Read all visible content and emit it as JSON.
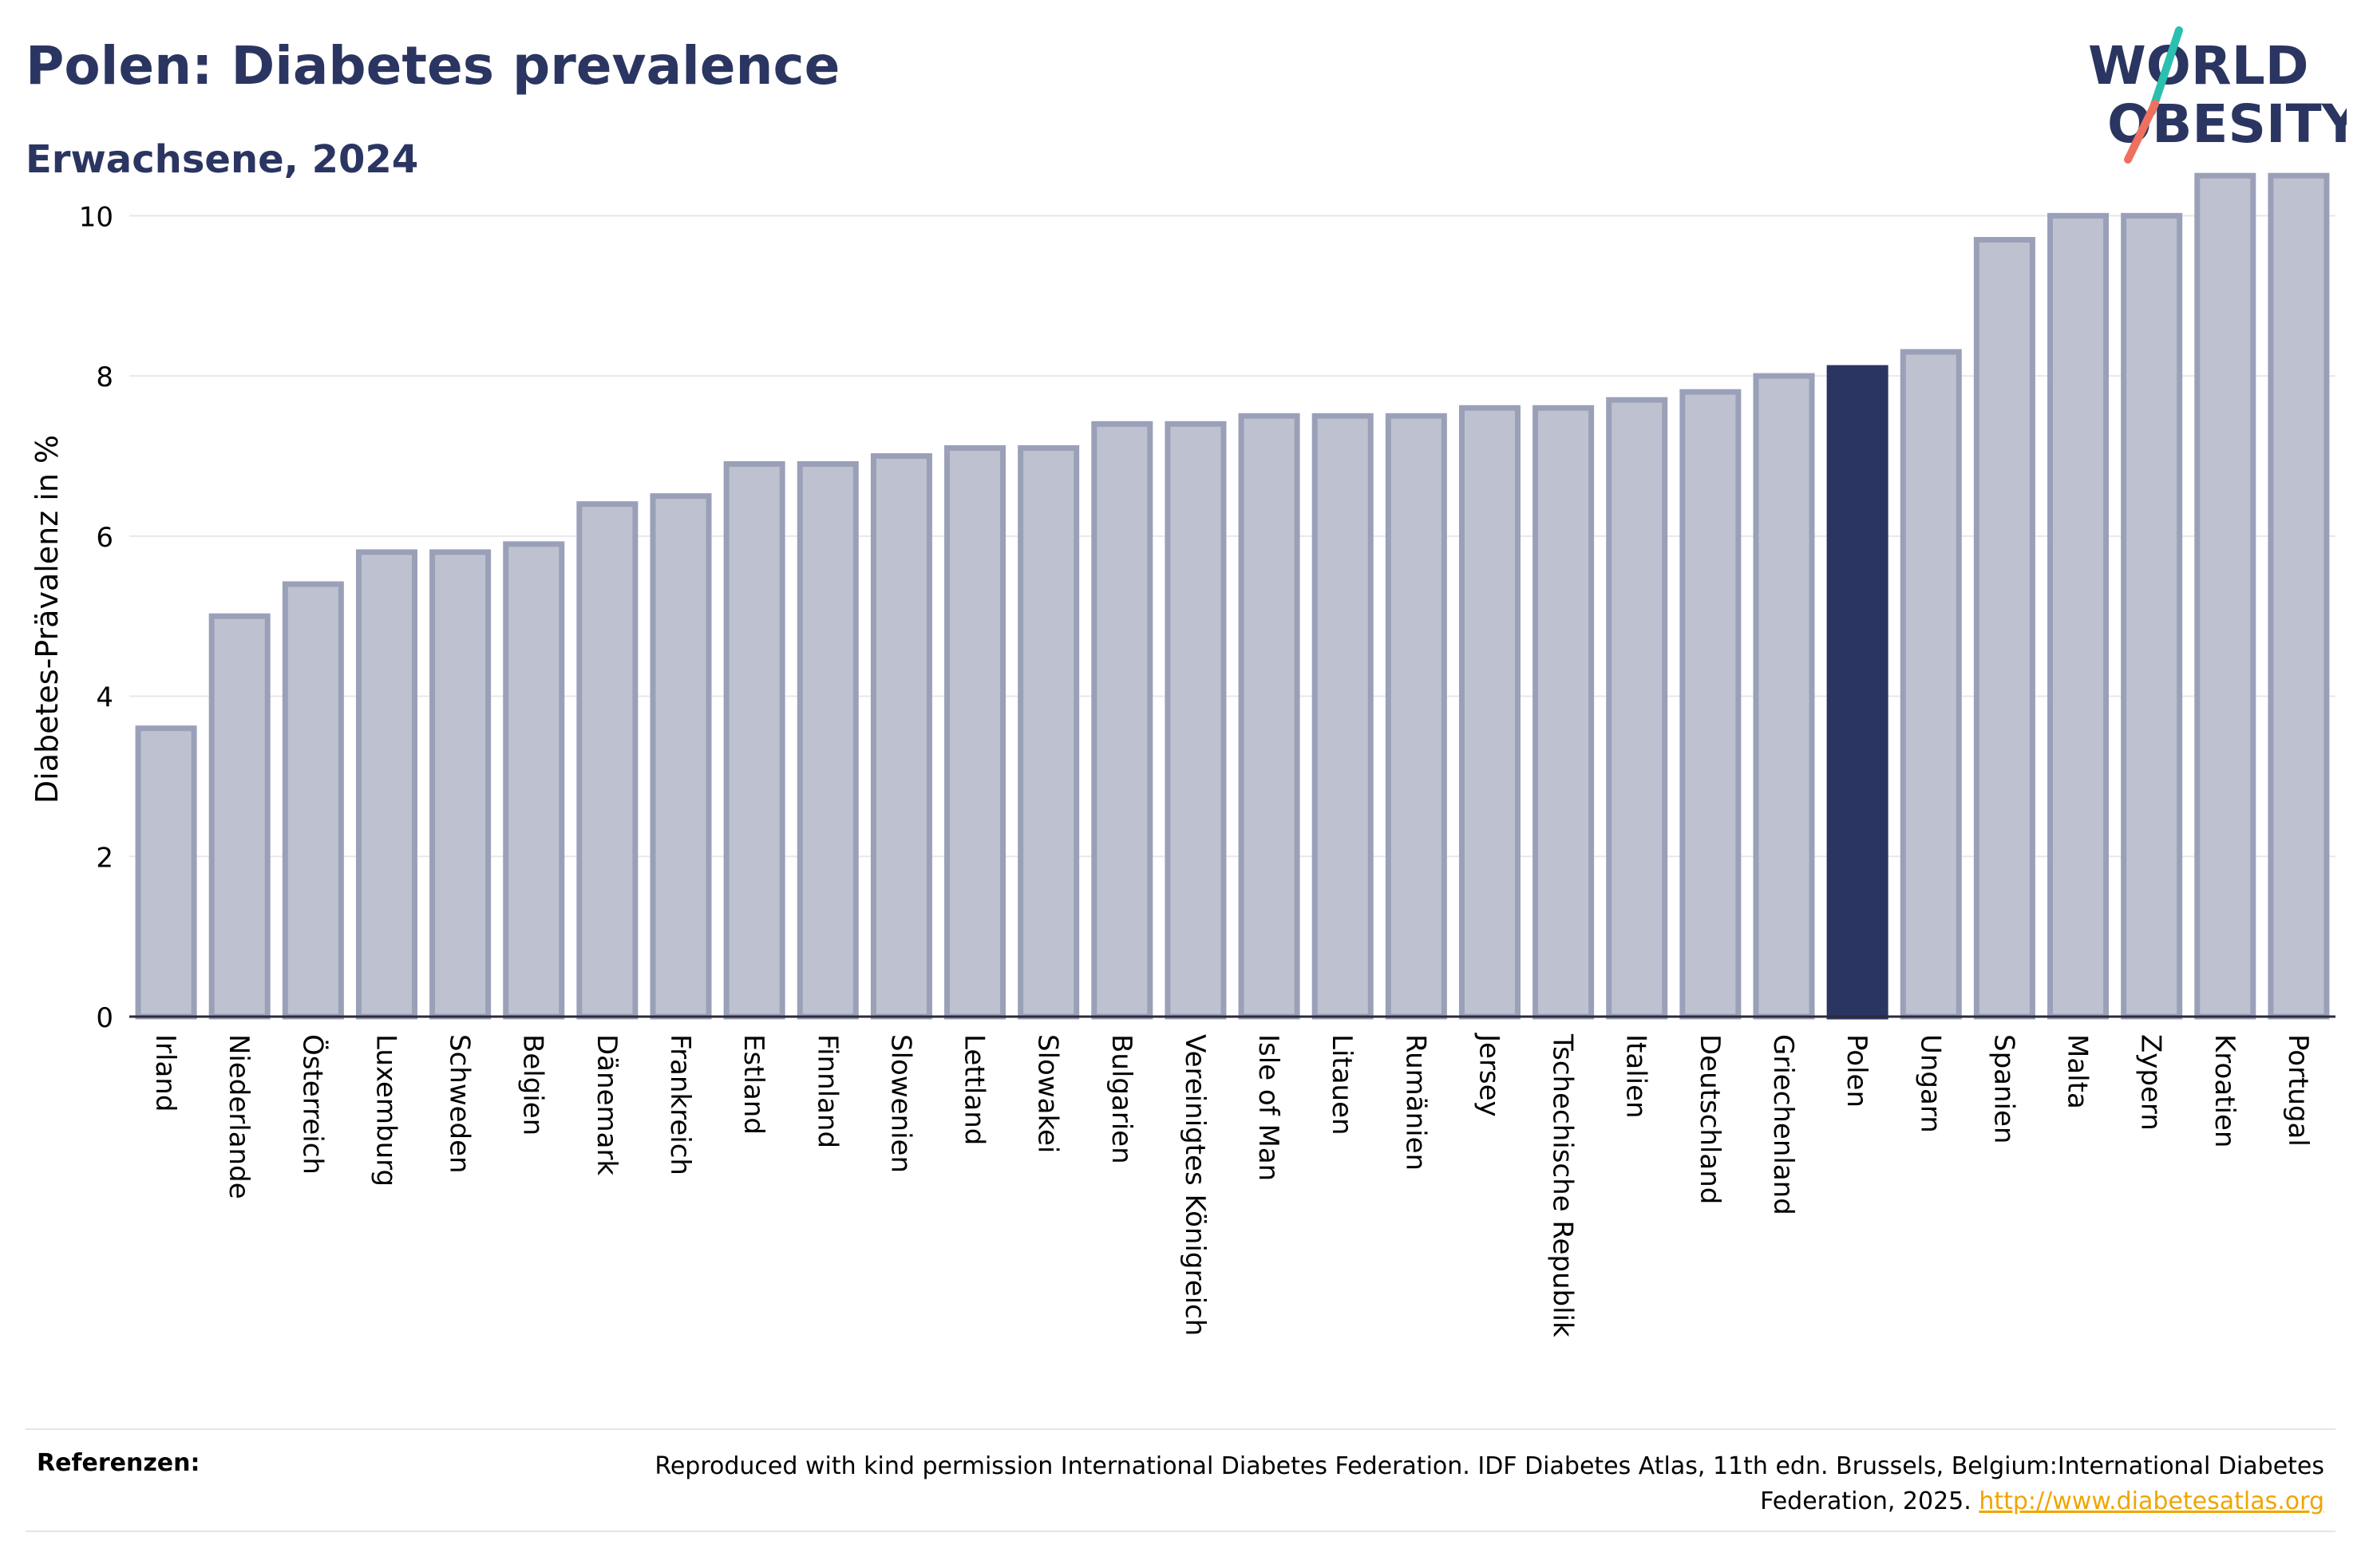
{
  "header": {
    "title": "Polen: Diabetes prevalence",
    "subtitle": "Erwachsene, 2024"
  },
  "logo": {
    "line1": "WORLD",
    "line2": "OBESITY",
    "colors": {
      "text": "#2b3561",
      "slash_top": "#2bbfb0",
      "slash_bottom": "#f07060"
    }
  },
  "chart_data": {
    "type": "bar",
    "ylabel": "Diabetes-Prävalenz in %",
    "xlabel": "",
    "ylim": [
      0,
      11
    ],
    "yticks": [
      0,
      2,
      4,
      6,
      8,
      10
    ],
    "grid": true,
    "highlight": "Polen",
    "colors": {
      "bar": "#bec2d0",
      "bar_edge": "#9aa0b8",
      "highlight": "#2b3561"
    },
    "categories": [
      "Irland",
      "Niederlande",
      "Österreich",
      "Luxemburg",
      "Schweden",
      "Belgien",
      "Dänemark",
      "Frankreich",
      "Estland",
      "Finnland",
      "Slowenien",
      "Lettland",
      "Slowakei",
      "Bulgarien",
      "Vereinigtes Königreich",
      "Isle of Man",
      "Litauen",
      "Rumänien",
      "Jersey",
      "Tschechische Republik",
      "Italien",
      "Deutschland",
      "Griechenland",
      "Polen",
      "Ungarn",
      "Spanien",
      "Malta",
      "Zypern",
      "Kroatien",
      "Portugal"
    ],
    "values": [
      3.6,
      5.0,
      5.4,
      5.8,
      5.8,
      5.9,
      6.4,
      6.5,
      6.9,
      6.9,
      7.0,
      7.1,
      7.1,
      7.4,
      7.4,
      7.5,
      7.5,
      7.5,
      7.6,
      7.6,
      7.7,
      7.8,
      8.0,
      8.1,
      8.3,
      9.7,
      10.0,
      10.0,
      10.5,
      10.5
    ]
  },
  "footer": {
    "references_label": "Referenzen:",
    "reference_text": "Reproduced with kind permission International Diabetes Federation. IDF Diabetes Atlas, 11th edn. Brussels, Belgium:International Diabetes Federation, 2025.",
    "reference_link": "http://www.diabetesatlas.org"
  }
}
